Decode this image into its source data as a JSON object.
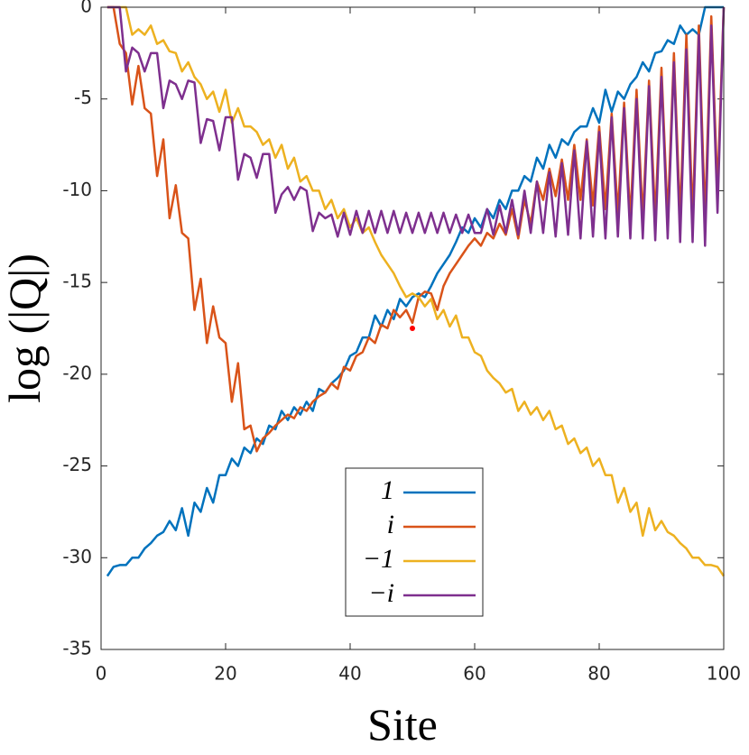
{
  "chart_data": {
    "type": "line",
    "xlabel": "Site",
    "ylabel": "log (|Q|)",
    "xlim": [
      0,
      100
    ],
    "ylim": [
      -35,
      0
    ],
    "xticks": [
      0,
      20,
      40,
      60,
      80,
      100
    ],
    "yticks": [
      -35,
      -30,
      -25,
      -20,
      -15,
      -10,
      -5,
      0
    ],
    "x": [
      1,
      2,
      3,
      4,
      5,
      6,
      7,
      8,
      9,
      10,
      11,
      12,
      13,
      14,
      15,
      16,
      17,
      18,
      19,
      20,
      21,
      22,
      23,
      24,
      25,
      26,
      27,
      28,
      29,
      30,
      31,
      32,
      33,
      34,
      35,
      36,
      37,
      38,
      39,
      40,
      41,
      42,
      43,
      44,
      45,
      46,
      47,
      48,
      49,
      50,
      51,
      52,
      53,
      54,
      55,
      56,
      57,
      58,
      59,
      60,
      61,
      62,
      63,
      64,
      65,
      66,
      67,
      68,
      69,
      70,
      71,
      72,
      73,
      74,
      75,
      76,
      77,
      78,
      79,
      80,
      81,
      82,
      83,
      84,
      85,
      86,
      87,
      88,
      89,
      90,
      91,
      92,
      93,
      94,
      95,
      96,
      97,
      98,
      99,
      100
    ],
    "series": [
      {
        "name": "1",
        "color": "#0072bd",
        "values": [
          -31,
          -30.5,
          -30.4,
          -30.4,
          -30,
          -30,
          -29.5,
          -29.2,
          -28.8,
          -28.6,
          -28,
          -28.5,
          -27.3,
          -28.8,
          -27,
          -27.5,
          -26.2,
          -27,
          -25.5,
          -25.5,
          -24.6,
          -25,
          -24,
          -24.3,
          -23.5,
          -23.8,
          -22.8,
          -23,
          -22,
          -22.5,
          -21.8,
          -22.2,
          -21.5,
          -22,
          -20.8,
          -21,
          -20.5,
          -20.2,
          -19.8,
          -19,
          -18.8,
          -18,
          -18,
          -16.8,
          -17.4,
          -16.5,
          -17,
          -15.9,
          -16.3,
          -15.8,
          -15.6,
          -15.8,
          -15.2,
          -14.5,
          -14,
          -13.5,
          -12.8,
          -12,
          -12.3,
          -11.5,
          -12,
          -11,
          -11.5,
          -10.5,
          -11,
          -10,
          -10,
          -9.2,
          -9.5,
          -8.2,
          -8.8,
          -7.5,
          -8.2,
          -7.2,
          -7.5,
          -6.8,
          -6.5,
          -6.5,
          -5.5,
          -6.3,
          -4.5,
          -5.7,
          -4.6,
          -5,
          -4.2,
          -3.8,
          -3,
          -3.5,
          -2.5,
          -2.4,
          -1.8,
          -2,
          -1,
          -1.5,
          -1.2,
          -1.5,
          0,
          0,
          0,
          0
        ]
      },
      {
        "name": "i",
        "color": "#d95319",
        "values": [
          0,
          0,
          -2,
          -2.5,
          -5.3,
          -3.2,
          -5.5,
          -5.8,
          -9.2,
          -7.2,
          -11.5,
          -9.7,
          -12.3,
          -12.6,
          -16.5,
          -14.8,
          -18.3,
          -16.3,
          -18,
          -18.3,
          -21.5,
          -19.4,
          -23,
          -22.8,
          -24.2,
          -23.5,
          -23.2,
          -22.8,
          -22.5,
          -22.2,
          -22.4,
          -21.8,
          -22,
          -21.5,
          -21.2,
          -21,
          -20.5,
          -20.8,
          -19.6,
          -19.8,
          -19,
          -18.8,
          -18,
          -18.3,
          -17.3,
          -17.5,
          -16.5,
          -16.9,
          -16.5,
          -17.2,
          -15.8,
          -15.5,
          -15.6,
          -16.5,
          -15.2,
          -14.5,
          -14,
          -13.5,
          -13,
          -12.6,
          -13,
          -12.3,
          -12.6,
          -11.8,
          -12.4,
          -11,
          -12.6,
          -10.5,
          -11.8,
          -9.5,
          -10.5,
          -8.8,
          -10.3,
          -8.3,
          -10.5,
          -7.5,
          -10.5,
          -7.2,
          -10.8,
          -6.5,
          -11,
          -5.8,
          -11.2,
          -5.2,
          -11.5,
          -4.5,
          -11.5,
          -4,
          -11.5,
          -3.3,
          -11.5,
          -2.5,
          -11.5,
          -1.5,
          -11.5,
          -1,
          -11.5,
          -0.5,
          -10,
          0
        ]
      },
      {
        "name": "−1",
        "color": "#edb120",
        "values": [
          0,
          0,
          0,
          0,
          -1.5,
          -1.2,
          -1.5,
          -1,
          -2,
          -1.8,
          -2.4,
          -2.5,
          -3.5,
          -3,
          -3.8,
          -4.2,
          -5,
          -4.6,
          -5.7,
          -4.5,
          -6.3,
          -5.5,
          -6.5,
          -6.5,
          -6.8,
          -7.5,
          -7.2,
          -8.2,
          -7.5,
          -8.8,
          -8.2,
          -9.5,
          -9.2,
          -10,
          -10,
          -11,
          -10.5,
          -11.5,
          -11,
          -12,
          -11.5,
          -12.3,
          -12,
          -12.8,
          -13.5,
          -14,
          -14.5,
          -15.2,
          -15.8,
          -15.6,
          -15.8,
          -16.3,
          -15.9,
          -17,
          -16.5,
          -17.4,
          -16.8,
          -18,
          -18,
          -18.8,
          -19,
          -19.8,
          -20.2,
          -20.5,
          -21,
          -20.8,
          -22,
          -21.5,
          -22.2,
          -21.8,
          -22.5,
          -22,
          -23,
          -22.8,
          -23.8,
          -23.5,
          -24.3,
          -24,
          -25,
          -24.6,
          -25.5,
          -25.5,
          -27,
          -26.2,
          -27.5,
          -27,
          -28.8,
          -27.3,
          -28.5,
          -28,
          -28.6,
          -28.8,
          -29.2,
          -29.5,
          -30,
          -30,
          -30.4,
          -30.4,
          -30.5,
          -31
        ]
      },
      {
        "name": "−i",
        "color": "#7e2f8e",
        "values": [
          0,
          0,
          0,
          -3.5,
          -2.2,
          -2.5,
          -3.5,
          -2.5,
          -2.5,
          -5.5,
          -4,
          -4.2,
          -5,
          -4,
          -4.1,
          -7.4,
          -6.1,
          -6.2,
          -7.8,
          -6,
          -6,
          -9.4,
          -8,
          -8.2,
          -9.3,
          -8,
          -8,
          -11.2,
          -10.2,
          -9.8,
          -10.5,
          -9.8,
          -10,
          -12.2,
          -11.2,
          -11.5,
          -11.3,
          -12.5,
          -11.2,
          -12.4,
          -11.1,
          -12.3,
          -11.1,
          -12.3,
          -11.1,
          -12.3,
          -11.1,
          -12.3,
          -11.2,
          -12.3,
          -11.2,
          -12.3,
          -11.2,
          -12.3,
          -11.2,
          -12.3,
          -11.3,
          -12.3,
          -11.3,
          -12.3,
          -12.3,
          -11,
          -12.4,
          -10.8,
          -12.3,
          -10.5,
          -12.4,
          -10,
          -12.3,
          -9.5,
          -12.3,
          -9,
          -12.5,
          -8.5,
          -12.4,
          -7.8,
          -12.6,
          -7.3,
          -12.5,
          -6.8,
          -12.6,
          -6,
          -12.5,
          -5.5,
          -12.6,
          -5,
          -12.6,
          -4.3,
          -12.7,
          -3.8,
          -12.6,
          -3,
          -12.8,
          -2.3,
          -12.8,
          -1.5,
          -13,
          -1,
          -11.2,
          0
        ]
      }
    ],
    "marker": {
      "x": 50,
      "y": -17.5,
      "color": "#ff0000"
    }
  }
}
